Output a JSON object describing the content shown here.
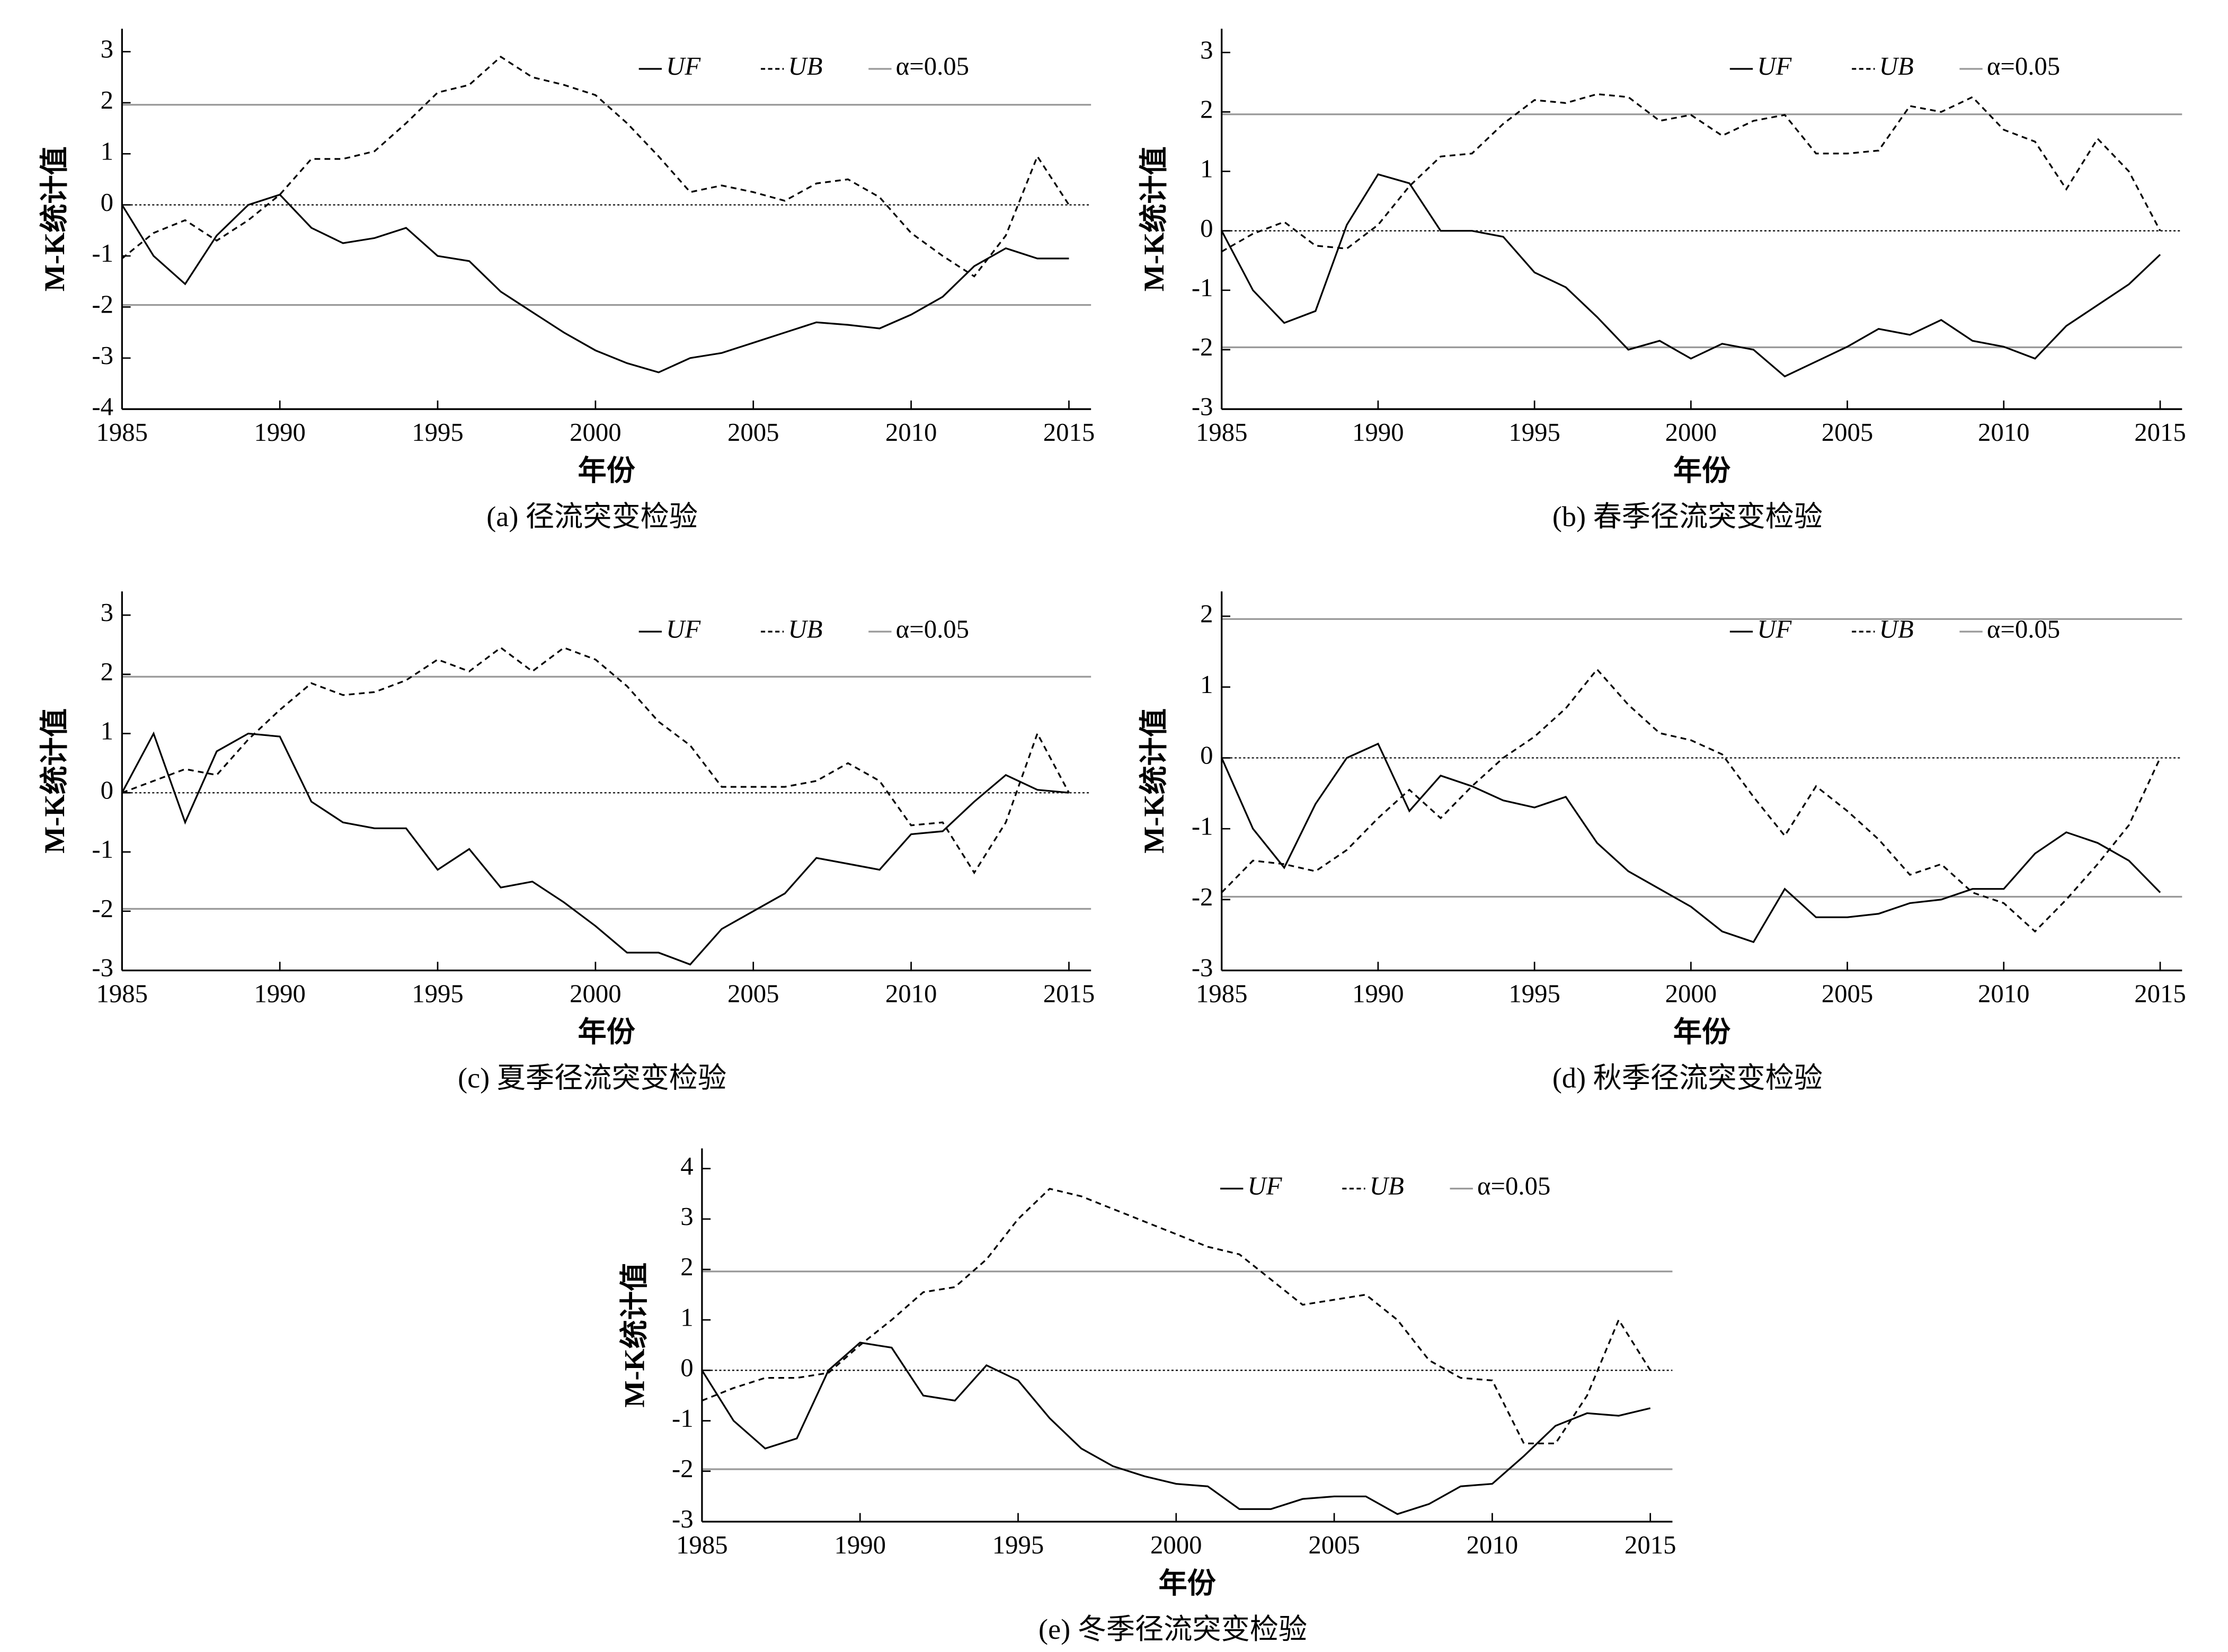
{
  "chart_data": [
    {
      "type": "line",
      "caption": "(a) 径流突变检验",
      "xlabel": "年份",
      "ylabel": "M-K统计值",
      "x": [
        1985,
        1986,
        1987,
        1988,
        1989,
        1990,
        1991,
        1992,
        1993,
        1994,
        1995,
        1996,
        1997,
        1998,
        1999,
        2000,
        2001,
        2002,
        2003,
        2004,
        2005,
        2006,
        2007,
        2008,
        2009,
        2010,
        2011,
        2012,
        2013,
        2014,
        2015
      ],
      "series": [
        {
          "name": "UF",
          "color": "#000000",
          "dash": "solid",
          "values": [
            0,
            -1.0,
            -1.55,
            -0.6,
            0.0,
            0.2,
            -0.45,
            -0.75,
            -0.65,
            -0.45,
            -1.0,
            -1.1,
            -1.7,
            -2.1,
            -2.5,
            -2.85,
            -3.1,
            -3.28,
            -3.0,
            -2.9,
            -2.7,
            -2.5,
            -2.3,
            -2.35,
            -2.42,
            -2.15,
            -1.8,
            -1.2,
            -0.85,
            -1.05,
            -1.05
          ]
        },
        {
          "name": "UB",
          "color": "#000000",
          "dash": "dashed",
          "values": [
            -1.05,
            -0.55,
            -0.3,
            -0.7,
            -0.3,
            0.2,
            0.9,
            0.9,
            1.05,
            1.6,
            2.2,
            2.35,
            2.9,
            2.5,
            2.35,
            2.15,
            1.6,
            0.95,
            0.25,
            0.38,
            0.25,
            0.08,
            0.42,
            0.5,
            0.15,
            -0.55,
            -1.0,
            -1.4,
            -0.6,
            0.95,
            0.0
          ]
        }
      ],
      "reference_lines": {
        "name": "α=0.05",
        "color": "#999999",
        "values": [
          1.96,
          -1.96
        ]
      },
      "zero_line": true,
      "legend": "upper right",
      "xlim": [
        1985,
        2015.7
      ],
      "xticks": [
        1985,
        1990,
        1995,
        2000,
        2005,
        2010,
        2015
      ],
      "ylim": [
        -4,
        3.45
      ],
      "yticks": [
        -4,
        -3,
        -2,
        -1,
        0,
        1,
        2,
        3
      ]
    },
    {
      "type": "line",
      "caption": "(b) 春季径流突变检验",
      "xlabel": "年份",
      "ylabel": "M-K统计值",
      "x": [
        1985,
        1986,
        1987,
        1988,
        1989,
        1990,
        1991,
        1992,
        1993,
        1994,
        1995,
        1996,
        1997,
        1998,
        1999,
        2000,
        2001,
        2002,
        2003,
        2004,
        2005,
        2006,
        2007,
        2008,
        2009,
        2010,
        2011,
        2012,
        2013,
        2014,
        2015
      ],
      "series": [
        {
          "name": "UF",
          "color": "#000000",
          "dash": "solid",
          "values": [
            0,
            -1.0,
            -1.55,
            -1.35,
            0.1,
            0.95,
            0.8,
            0.0,
            0.0,
            -0.1,
            -0.7,
            -0.95,
            -1.45,
            -2.0,
            -1.85,
            -2.15,
            -1.9,
            -2.0,
            -2.45,
            -2.2,
            -1.95,
            -1.65,
            -1.75,
            -1.5,
            -1.85,
            -1.95,
            -2.15,
            -1.6,
            -1.25,
            -0.9,
            -0.4
          ]
        },
        {
          "name": "UB",
          "color": "#000000",
          "dash": "dashed",
          "values": [
            -0.35,
            -0.05,
            0.15,
            -0.25,
            -0.3,
            0.1,
            0.75,
            1.25,
            1.3,
            1.8,
            2.2,
            2.15,
            2.3,
            2.25,
            1.85,
            1.95,
            1.6,
            1.85,
            1.95,
            1.3,
            1.3,
            1.35,
            2.1,
            2.0,
            2.25,
            1.7,
            1.5,
            0.7,
            1.55,
            1.0,
            0.0
          ]
        }
      ],
      "reference_lines": {
        "name": "α=0.05",
        "color": "#999999",
        "values": [
          1.96,
          -1.96
        ]
      },
      "zero_line": true,
      "legend": "upper right",
      "xlim": [
        1985,
        2015.7
      ],
      "xticks": [
        1985,
        1990,
        1995,
        2000,
        2005,
        2010,
        2015
      ],
      "ylim": [
        -3,
        3.4
      ],
      "yticks": [
        -3,
        -2,
        -1,
        0,
        1,
        2,
        3
      ]
    },
    {
      "type": "line",
      "caption": "(c) 夏季径流突变检验",
      "xlabel": "年份",
      "ylabel": "M-K统计值",
      "x": [
        1985,
        1986,
        1987,
        1988,
        1989,
        1990,
        1991,
        1992,
        1993,
        1994,
        1995,
        1996,
        1997,
        1998,
        1999,
        2000,
        2001,
        2002,
        2003,
        2004,
        2005,
        2006,
        2007,
        2008,
        2009,
        2010,
        2011,
        2012,
        2013,
        2014,
        2015
      ],
      "series": [
        {
          "name": "UF",
          "color": "#000000",
          "dash": "solid",
          "values": [
            0,
            1.0,
            -0.5,
            0.7,
            1.0,
            0.95,
            -0.15,
            -0.5,
            -0.6,
            -0.6,
            -1.3,
            -0.95,
            -1.6,
            -1.5,
            -1.85,
            -2.25,
            -2.7,
            -2.7,
            -2.9,
            -2.3,
            -2.0,
            -1.7,
            -1.1,
            -1.2,
            -1.3,
            -0.7,
            -0.65,
            -0.15,
            0.3,
            0.05,
            0.0
          ]
        },
        {
          "name": "UB",
          "color": "#000000",
          "dash": "dashed",
          "values": [
            0.0,
            0.2,
            0.4,
            0.3,
            0.9,
            1.4,
            1.85,
            1.65,
            1.7,
            1.9,
            2.25,
            2.05,
            2.45,
            2.05,
            2.45,
            2.25,
            1.8,
            1.2,
            0.8,
            0.1,
            0.1,
            0.1,
            0.2,
            0.5,
            0.2,
            -0.55,
            -0.5,
            -1.35,
            -0.5,
            1.0,
            0.0
          ]
        }
      ],
      "reference_lines": {
        "name": "α=0.05",
        "color": "#999999",
        "values": [
          1.96,
          -1.96
        ]
      },
      "zero_line": true,
      "legend": "upper right",
      "xlim": [
        1985,
        2015.7
      ],
      "xticks": [
        1985,
        1990,
        1995,
        2000,
        2005,
        2010,
        2015
      ],
      "ylim": [
        -3,
        3.4
      ],
      "yticks": [
        -3,
        -2,
        -1,
        0,
        1,
        2,
        3
      ]
    },
    {
      "type": "line",
      "caption": "(d) 秋季径流突变检验",
      "xlabel": "年份",
      "ylabel": "M-K统计值",
      "x": [
        1985,
        1986,
        1987,
        1988,
        1989,
        1990,
        1991,
        1992,
        1993,
        1994,
        1995,
        1996,
        1997,
        1998,
        1999,
        2000,
        2001,
        2002,
        2003,
        2004,
        2005,
        2006,
        2007,
        2008,
        2009,
        2010,
        2011,
        2012,
        2013,
        2014,
        2015
      ],
      "series": [
        {
          "name": "UF",
          "color": "#000000",
          "dash": "solid",
          "values": [
            0,
            -1.0,
            -1.55,
            -0.65,
            0.0,
            0.2,
            -0.75,
            -0.25,
            -0.4,
            -0.6,
            -0.7,
            -0.55,
            -1.2,
            -1.6,
            -1.85,
            -2.1,
            -2.45,
            -2.6,
            -1.85,
            -2.25,
            -2.25,
            -2.2,
            -2.05,
            -2.0,
            -1.85,
            -1.85,
            -1.35,
            -1.05,
            -1.2,
            -1.45,
            -1.9
          ]
        },
        {
          "name": "UB",
          "color": "#000000",
          "dash": "dashed",
          "values": [
            -1.9,
            -1.45,
            -1.5,
            -1.6,
            -1.3,
            -0.85,
            -0.45,
            -0.85,
            -0.4,
            0.0,
            0.3,
            0.7,
            1.25,
            0.75,
            0.35,
            0.25,
            0.05,
            -0.55,
            -1.1,
            -0.4,
            -0.75,
            -1.15,
            -1.65,
            -1.5,
            -1.9,
            -2.05,
            -2.45,
            -2.0,
            -1.5,
            -0.95,
            0.0
          ]
        }
      ],
      "reference_lines": {
        "name": "α=0.05",
        "color": "#999999",
        "values": [
          1.96,
          -1.96
        ]
      },
      "zero_line": true,
      "legend": "upper right",
      "xlim": [
        1985,
        2015.7
      ],
      "xticks": [
        1985,
        1990,
        1995,
        2000,
        2005,
        2010,
        2015
      ],
      "ylim": [
        -3,
        2.35
      ],
      "yticks": [
        -3,
        -2,
        -1,
        0,
        1,
        2
      ]
    },
    {
      "type": "line",
      "caption": "(e) 冬季径流突变检验",
      "xlabel": "年份",
      "ylabel": "M-K统计值",
      "x": [
        1985,
        1986,
        1987,
        1988,
        1989,
        1990,
        1991,
        1992,
        1993,
        1994,
        1995,
        1996,
        1997,
        1998,
        1999,
        2000,
        2001,
        2002,
        2003,
        2004,
        2005,
        2006,
        2007,
        2008,
        2009,
        2010,
        2011,
        2012,
        2013,
        2014,
        2015
      ],
      "series": [
        {
          "name": "UF",
          "color": "#000000",
          "dash": "solid",
          "values": [
            0,
            -1.0,
            -1.55,
            -1.35,
            0.0,
            0.55,
            0.45,
            -0.5,
            -0.6,
            0.1,
            -0.2,
            -0.95,
            -1.55,
            -1.9,
            -2.1,
            -2.25,
            -2.3,
            -2.75,
            -2.75,
            -2.55,
            -2.5,
            -2.5,
            -2.85,
            -2.65,
            -2.3,
            -2.25,
            -1.7,
            -1.1,
            -0.85,
            -0.9,
            -0.75
          ]
        },
        {
          "name": "UB",
          "color": "#000000",
          "dash": "dashed",
          "values": [
            -0.6,
            -0.35,
            -0.15,
            -0.15,
            -0.05,
            0.5,
            1.0,
            1.55,
            1.65,
            2.2,
            3.0,
            3.6,
            3.45,
            3.2,
            2.95,
            2.7,
            2.45,
            2.3,
            1.8,
            1.3,
            1.4,
            1.5,
            1.0,
            0.2,
            -0.15,
            -0.2,
            -1.45,
            -1.45,
            -0.5,
            1.0,
            0.0
          ]
        }
      ],
      "reference_lines": {
        "name": "α=0.05",
        "color": "#999999",
        "values": [
          1.96,
          -1.96
        ]
      },
      "zero_line": true,
      "legend": "upper right",
      "xlim": [
        1985,
        2015.7
      ],
      "xticks": [
        1985,
        1990,
        1995,
        2000,
        2005,
        2010,
        2015
      ],
      "ylim": [
        -3,
        4.4
      ],
      "yticks": [
        -3,
        -2,
        -1,
        0,
        1,
        2,
        3,
        4
      ]
    }
  ]
}
